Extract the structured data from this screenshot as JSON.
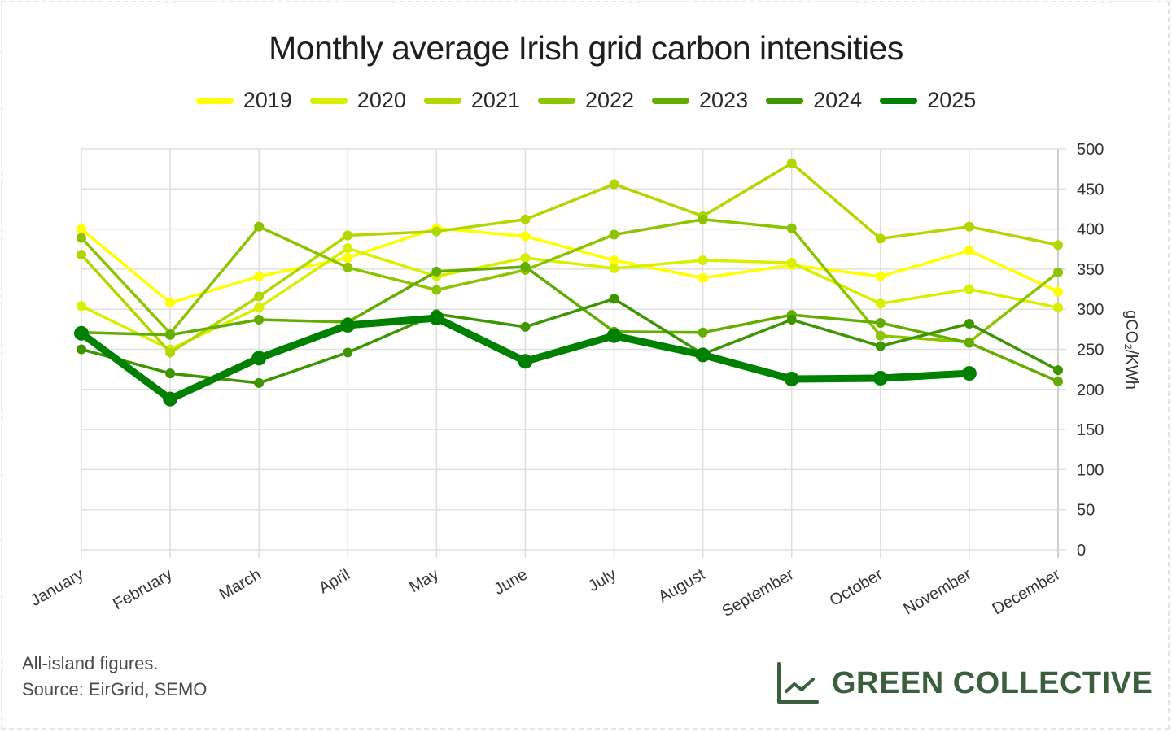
{
  "chart_data": {
    "type": "line",
    "title": "Monthly average Irish grid carbon intensities",
    "xlabel": "",
    "ylabel": "gCO₂/KWh",
    "ylim": [
      0,
      500
    ],
    "yticks": [
      0,
      50,
      100,
      150,
      200,
      250,
      300,
      350,
      400,
      450,
      500
    ],
    "y_axis_side": "right",
    "grid": true,
    "legend_position": "top-center",
    "categories": [
      "January",
      "February",
      "March",
      "April",
      "May",
      "June",
      "July",
      "August",
      "September",
      "October",
      "November",
      "December"
    ],
    "series": [
      {
        "name": "2019",
        "color": "#ffff00",
        "emphasis": false,
        "values": [
          400,
          308,
          341,
          364,
          401,
          391,
          361,
          339,
          355,
          341,
          373,
          322
        ]
      },
      {
        "name": "2020",
        "color": "#d9ef00",
        "emphasis": false,
        "values": [
          304,
          250,
          302,
          376,
          341,
          364,
          351,
          361,
          358,
          307,
          325,
          302
        ]
      },
      {
        "name": "2021",
        "color": "#b0d800",
        "emphasis": false,
        "values": [
          368,
          246,
          316,
          392,
          397,
          412,
          456,
          416,
          482,
          388,
          403,
          380
        ]
      },
      {
        "name": "2022",
        "color": "#8cc400",
        "emphasis": false,
        "values": [
          389,
          270,
          403,
          352,
          324,
          349,
          393,
          412,
          401,
          267,
          259,
          346
        ]
      },
      {
        "name": "2023",
        "color": "#63ad00",
        "emphasis": false,
        "values": [
          271,
          268,
          287,
          284,
          347,
          353,
          272,
          271,
          293,
          283,
          258,
          210
        ]
      },
      {
        "name": "2024",
        "color": "#3d9600",
        "emphasis": false,
        "values": [
          250,
          220,
          208,
          246,
          294,
          278,
          313,
          244,
          287,
          254,
          282,
          224
        ]
      },
      {
        "name": "2025",
        "color": "#008000",
        "emphasis": true,
        "values": [
          270,
          188,
          239,
          280,
          289,
          235,
          267,
          243,
          213,
          214,
          220,
          null
        ]
      }
    ]
  },
  "footer": {
    "note_line1": "All-island figures.",
    "note_line2": "Source: EirGrid, SEMO",
    "brand_name": "GREEN COLLECTIVE",
    "brand_color": "#3b5e3e",
    "brand_icon": "line-chart-icon"
  }
}
